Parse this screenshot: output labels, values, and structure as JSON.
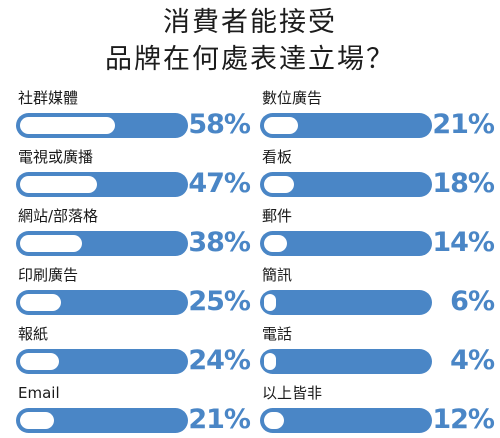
{
  "chart_data": {
    "type": "bar",
    "title_lines": [
      "消費者能接受",
      "品牌在何處表達立場？"
    ],
    "unit": "%",
    "ylim": [
      0,
      100
    ],
    "colors": {
      "bar": "#4a86c6",
      "fill": "#ffffff",
      "text": "#4a86c6"
    },
    "categories": [
      "社群媒體",
      "電視或廣播",
      "網站/部落格",
      "印刷廣告",
      "報紙",
      "Email",
      "數位廣告",
      "看板",
      "郵件",
      "簡訊",
      "電話",
      "以上皆非"
    ],
    "values": [
      58,
      47,
      38,
      25,
      24,
      21,
      21,
      18,
      14,
      6,
      4,
      12
    ],
    "value_labels": [
      "58%",
      "47%",
      "38%",
      "25%",
      "24%",
      "21%",
      "21%",
      "18%",
      "14%",
      "6%",
      "4%",
      "12%"
    ]
  }
}
